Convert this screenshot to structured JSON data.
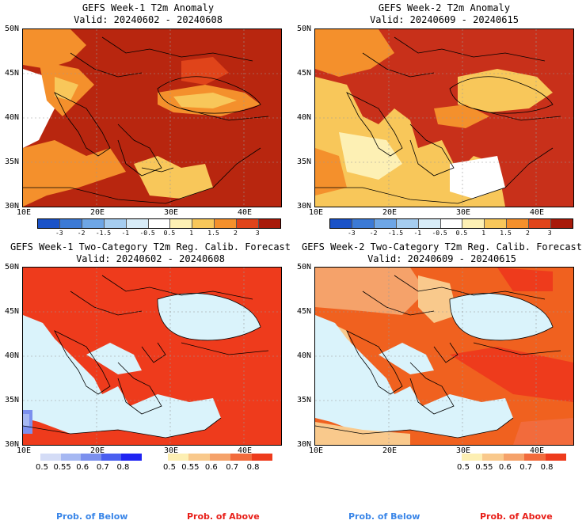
{
  "panels": [
    {
      "title": "GEFS Week-1 T2m Anomaly",
      "valid": "Valid: 20240602 - 20240608",
      "kind": "anomaly",
      "bg": "#b8260f"
    },
    {
      "title": "GEFS Week-2 T2m Anomaly",
      "valid": "Valid: 20240609 - 20240615",
      "kind": "anomaly",
      "bg": "#c8301a"
    },
    {
      "title": "GEFS Week-1 Two-Category T2m Reg. Calib. Forecast",
      "valid": "Valid: 20240602 - 20240608",
      "kind": "prob",
      "bg": "#ee3b1c"
    },
    {
      "title": "GEFS Week-2 Two-Category T2m Reg. Calib. Forecast",
      "valid": "Valid: 20240609 - 20240615",
      "kind": "prob",
      "bg": "#f0611f"
    }
  ],
  "axes": {
    "lat_labels": [
      "50N",
      "45N",
      "40N",
      "35N",
      "30N"
    ],
    "lon_labels": [
      "10E",
      "20E",
      "30E",
      "40E"
    ]
  },
  "anomaly_colorbar": {
    "labels": [
      "-3",
      "-2",
      "-1.5",
      "-1",
      "-0.5",
      "0.5",
      "1",
      "1.5",
      "2",
      "3"
    ],
    "colors": [
      "#1a52c8",
      "#3c7ad6",
      "#6ea6e6",
      "#a6cdf0",
      "#d8ecf8",
      "#ffffff",
      "#fdf0b4",
      "#f8c75a",
      "#f4902c",
      "#e0441a",
      "#a81a0a"
    ]
  },
  "prob_colorbar": {
    "below_labels": [
      "0.5",
      "0.55",
      "0.6",
      "0.7",
      "0.8"
    ],
    "below_colors": [
      "#d4dcf6",
      "#a6b8f2",
      "#7c90ee",
      "#4a5ff0",
      "#1f24f2"
    ],
    "above_labels": [
      "0.5",
      "0.55",
      "0.6",
      "0.7",
      "0.8"
    ],
    "above_colors": [
      "#fdefb3",
      "#f9c98c",
      "#f5a26a",
      "#f26b3c",
      "#ee3b1c"
    ]
  },
  "footer": {
    "below": "Prob. of Below",
    "above": "Prob. of Above",
    "below_color": "#3a86e8",
    "above_color": "#e8201a"
  },
  "colors": {
    "sea": "#daf3fb"
  }
}
